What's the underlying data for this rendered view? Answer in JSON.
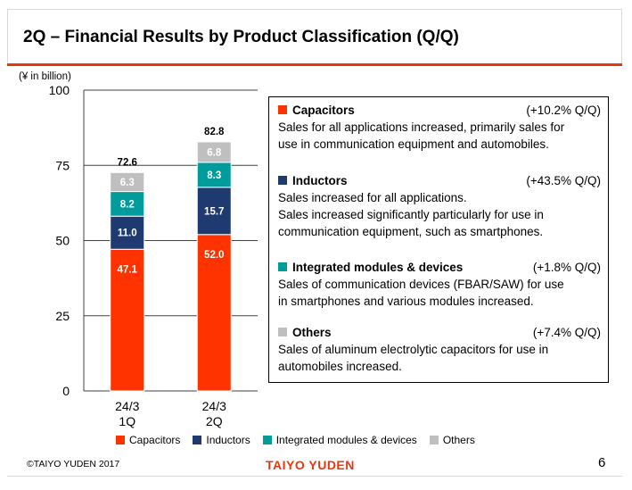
{
  "slide": {
    "title": "2Q – Financial Results by Product Classification (Q/Q)",
    "unit_label": "(¥ in billion)",
    "footer_copyright": "©TAIYO YUDEN 2017",
    "footer_brand": "TAIYO YUDEN",
    "page_number": "6"
  },
  "colors": {
    "accent": "#e8380d",
    "capacitors": "#ff3300",
    "inductors": "#1f3a70",
    "modules": "#009b9b",
    "others": "#bfbfbf"
  },
  "chart_data": {
    "type": "bar",
    "stacked": true,
    "categories": [
      "24/3\n1Q",
      "24/3\n2Q"
    ],
    "series": [
      {
        "name": "Capacitors",
        "values": [
          47.1,
          52.0
        ],
        "color": "#ff3300"
      },
      {
        "name": "Inductors",
        "values": [
          11.0,
          15.7
        ],
        "color": "#1f3a70"
      },
      {
        "name": "Integrated modules & devices",
        "values": [
          8.2,
          8.3
        ],
        "color": "#009b9b"
      },
      {
        "name": "Others",
        "values": [
          6.3,
          6.8
        ],
        "color": "#bfbfbf"
      }
    ],
    "totals": [
      72.6,
      82.8
    ],
    "ylabel": "(¥ in billion)",
    "ylim": [
      0,
      100
    ],
    "yticks": [
      0,
      25,
      50,
      75,
      100
    ],
    "grid": true,
    "legend_position": "bottom"
  },
  "panel": {
    "items": [
      {
        "name": "Capacitors",
        "growth": "(+10.2% Q/Q)",
        "color": "#ff3300",
        "description": "Sales for all applications increased, primarily sales for\nuse in communication equipment and automobiles."
      },
      {
        "name": "Inductors",
        "growth": "(+43.5% Q/Q)",
        "color": "#1f3a70",
        "description": "Sales increased for all applications.\nSales increased significantly particularly for use in\ncommunication equipment, such as smartphones."
      },
      {
        "name": "Integrated modules & devices",
        "growth": "(+1.8% Q/Q)",
        "color": "#009b9b",
        "description": "Sales of communication devices (FBAR/SAW) for use\nin smartphones and various modules increased."
      },
      {
        "name": "Others",
        "growth": "(+7.4% Q/Q)",
        "color": "#bfbfbf",
        "description": "Sales of aluminum electrolytic capacitors for use in\nautomobiles increased."
      }
    ]
  }
}
